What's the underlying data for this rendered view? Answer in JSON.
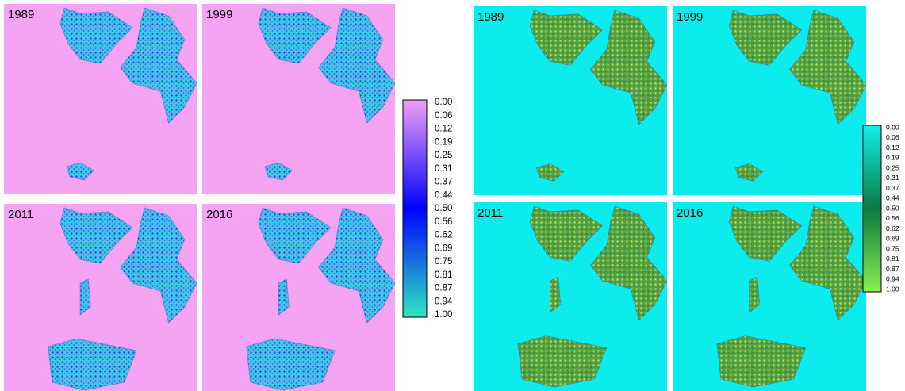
{
  "left_figure": {
    "panels": [
      {
        "year": "1989"
      },
      {
        "year": "1999"
      },
      {
        "year": "2011"
      },
      {
        "year": "2016"
      }
    ],
    "colorbar": {
      "ticks": [
        "0.00",
        "0.06",
        "0.12",
        "0.19",
        "0.25",
        "0.31",
        "0.37",
        "0.44",
        "0.50",
        "0.56",
        "0.62",
        "0.69",
        "0.75",
        "0.81",
        "0.87",
        "0.94",
        "1.00"
      ]
    }
  },
  "right_figure": {
    "panels": [
      {
        "year": "1989"
      },
      {
        "year": "1999"
      },
      {
        "year": "2011"
      },
      {
        "year": "2016"
      }
    ],
    "colorbar": {
      "ticks": [
        "0.00",
        "0.06",
        "0.12",
        "0.19",
        "0.25",
        "0.31",
        "0.37",
        "0.44",
        "0.50",
        "0.56",
        "0.62",
        "0.69",
        "0.75",
        "0.81",
        "0.87",
        "0.94",
        "1.00"
      ]
    }
  }
}
